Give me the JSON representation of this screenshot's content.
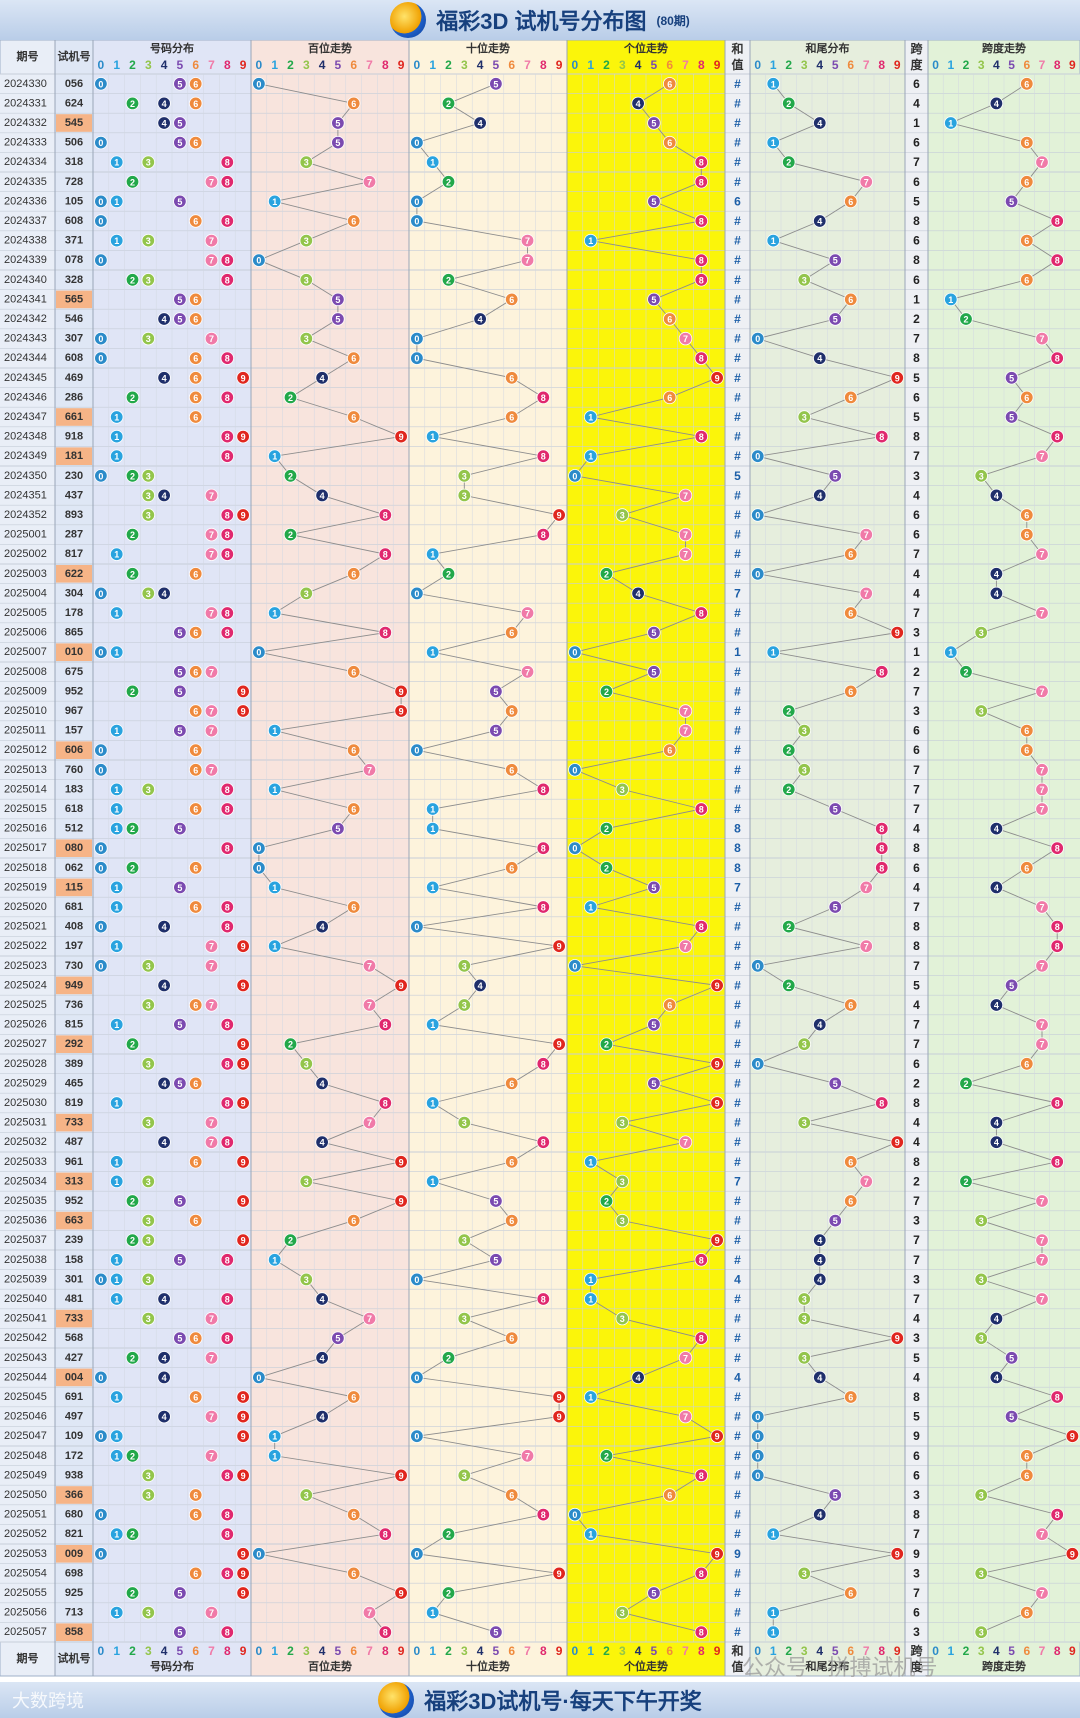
{
  "header": {
    "title": "福彩3D 试机号分布图",
    "subtitle": "(80期)"
  },
  "footer": {
    "title": "福彩3D试机号·每天下午开奖",
    "brand": "大数跨境",
    "watermark": "公众号 · 拼搏试机号"
  },
  "chart_data": {
    "type": "table",
    "column_headers": {
      "period": "期号",
      "trial": "试机号",
      "groups": [
        "号码分布",
        "百位走势",
        "十位走势",
        "个位走势",
        "和值",
        "和尾分布",
        "跨度",
        "跨度走势"
      ],
      "digits": [
        "0",
        "1",
        "2",
        "3",
        "4",
        "5",
        "6",
        "7",
        "8",
        "9"
      ]
    },
    "hezhi_placeholder": "#",
    "colors": {
      "0": "#2b8bc9",
      "1": "#29a3df",
      "2": "#22a84a",
      "3": "#93c54b",
      "4": "#1f2f6b",
      "5": "#7b4ab0",
      "6": "#ef8a3d",
      "7": "#f07aa8",
      "8": "#e0286e",
      "9": "#e0261e"
    },
    "rows": [
      {
        "p": "2024330",
        "n": "056",
        "s": "#",
        "sp": "6"
      },
      {
        "p": "2024331",
        "n": "624",
        "s": "#",
        "sp": "4"
      },
      {
        "p": "2024332",
        "n": "545",
        "s": "#",
        "sp": "1"
      },
      {
        "p": "2024333",
        "n": "506",
        "s": "#",
        "sp": "6"
      },
      {
        "p": "2024334",
        "n": "318",
        "s": "#",
        "sp": "7"
      },
      {
        "p": "2024335",
        "n": "728",
        "s": "#",
        "sp": "6"
      },
      {
        "p": "2024336",
        "n": "105",
        "s": "6",
        "sp": "5"
      },
      {
        "p": "2024337",
        "n": "608",
        "s": "#",
        "sp": "8"
      },
      {
        "p": "2024338",
        "n": "371",
        "s": "#",
        "sp": "6"
      },
      {
        "p": "2024339",
        "n": "078",
        "s": "#",
        "sp": "8"
      },
      {
        "p": "2024340",
        "n": "328",
        "s": "#",
        "sp": "6"
      },
      {
        "p": "2024341",
        "n": "565",
        "s": "#",
        "sp": "1"
      },
      {
        "p": "2024342",
        "n": "546",
        "s": "#",
        "sp": "2"
      },
      {
        "p": "2024343",
        "n": "307",
        "s": "#",
        "sp": "7"
      },
      {
        "p": "2024344",
        "n": "608",
        "s": "#",
        "sp": "8"
      },
      {
        "p": "2024345",
        "n": "469",
        "s": "#",
        "sp": "5"
      },
      {
        "p": "2024346",
        "n": "286",
        "s": "#",
        "sp": "6"
      },
      {
        "p": "2024347",
        "n": "661",
        "s": "#",
        "sp": "5"
      },
      {
        "p": "2024348",
        "n": "918",
        "s": "#",
        "sp": "8"
      },
      {
        "p": "2024349",
        "n": "181",
        "s": "#",
        "sp": "7"
      },
      {
        "p": "2024350",
        "n": "230",
        "s": "5",
        "sp": "3"
      },
      {
        "p": "2024351",
        "n": "437",
        "s": "#",
        "sp": "4"
      },
      {
        "p": "2024352",
        "n": "893",
        "s": "#",
        "sp": "6"
      },
      {
        "p": "2025001",
        "n": "287",
        "s": "#",
        "sp": "6"
      },
      {
        "p": "2025002",
        "n": "817",
        "s": "#",
        "sp": "7"
      },
      {
        "p": "2025003",
        "n": "622",
        "s": "#",
        "sp": "4"
      },
      {
        "p": "2025004",
        "n": "304",
        "s": "7",
        "sp": "4"
      },
      {
        "p": "2025005",
        "n": "178",
        "s": "#",
        "sp": "7"
      },
      {
        "p": "2025006",
        "n": "865",
        "s": "#",
        "sp": "3"
      },
      {
        "p": "2025007",
        "n": "010",
        "s": "1",
        "sp": "1"
      },
      {
        "p": "2025008",
        "n": "675",
        "s": "#",
        "sp": "2"
      },
      {
        "p": "2025009",
        "n": "952",
        "s": "#",
        "sp": "7"
      },
      {
        "p": "2025010",
        "n": "967",
        "s": "#",
        "sp": "3"
      },
      {
        "p": "2025011",
        "n": "157",
        "s": "#",
        "sp": "6"
      },
      {
        "p": "2025012",
        "n": "606",
        "s": "#",
        "sp": "6"
      },
      {
        "p": "2025013",
        "n": "760",
        "s": "#",
        "sp": "7"
      },
      {
        "p": "2025014",
        "n": "183",
        "s": "#",
        "sp": "7"
      },
      {
        "p": "2025015",
        "n": "618",
        "s": "#",
        "sp": "7"
      },
      {
        "p": "2025016",
        "n": "512",
        "s": "8",
        "sp": "4"
      },
      {
        "p": "2025017",
        "n": "080",
        "s": "8",
        "sp": "8"
      },
      {
        "p": "2025018",
        "n": "062",
        "s": "8",
        "sp": "6"
      },
      {
        "p": "2025019",
        "n": "115",
        "s": "7",
        "sp": "4"
      },
      {
        "p": "2025020",
        "n": "681",
        "s": "#",
        "sp": "7"
      },
      {
        "p": "2025021",
        "n": "408",
        "s": "#",
        "sp": "8"
      },
      {
        "p": "2025022",
        "n": "197",
        "s": "#",
        "sp": "8"
      },
      {
        "p": "2025023",
        "n": "730",
        "s": "#",
        "sp": "7"
      },
      {
        "p": "2025024",
        "n": "949",
        "s": "#",
        "sp": "5"
      },
      {
        "p": "2025025",
        "n": "736",
        "s": "#",
        "sp": "4"
      },
      {
        "p": "2025026",
        "n": "815",
        "s": "#",
        "sp": "7"
      },
      {
        "p": "2025027",
        "n": "292",
        "s": "#",
        "sp": "7"
      },
      {
        "p": "2025028",
        "n": "389",
        "s": "#",
        "sp": "6"
      },
      {
        "p": "2025029",
        "n": "465",
        "s": "#",
        "sp": "2"
      },
      {
        "p": "2025030",
        "n": "819",
        "s": "#",
        "sp": "8"
      },
      {
        "p": "2025031",
        "n": "733",
        "s": "#",
        "sp": "4"
      },
      {
        "p": "2025032",
        "n": "487",
        "s": "#",
        "sp": "4"
      },
      {
        "p": "2025033",
        "n": "961",
        "s": "#",
        "sp": "8"
      },
      {
        "p": "2025034",
        "n": "313",
        "s": "7",
        "sp": "2"
      },
      {
        "p": "2025035",
        "n": "952",
        "s": "#",
        "sp": "7"
      },
      {
        "p": "2025036",
        "n": "663",
        "s": "#",
        "sp": "3"
      },
      {
        "p": "2025037",
        "n": "239",
        "s": "#",
        "sp": "7"
      },
      {
        "p": "2025038",
        "n": "158",
        "s": "#",
        "sp": "7"
      },
      {
        "p": "2025039",
        "n": "301",
        "s": "4",
        "sp": "3"
      },
      {
        "p": "2025040",
        "n": "481",
        "s": "#",
        "sp": "7"
      },
      {
        "p": "2025041",
        "n": "733",
        "s": "#",
        "sp": "4"
      },
      {
        "p": "2025042",
        "n": "568",
        "s": "#",
        "sp": "3"
      },
      {
        "p": "2025043",
        "n": "427",
        "s": "#",
        "sp": "5"
      },
      {
        "p": "2025044",
        "n": "004",
        "s": "4",
        "sp": "4"
      },
      {
        "p": "2025045",
        "n": "691",
        "s": "#",
        "sp": "8"
      },
      {
        "p": "2025046",
        "n": "497",
        "s": "#",
        "sp": "5"
      },
      {
        "p": "2025047",
        "n": "109",
        "s": "#",
        "sp": "9"
      },
      {
        "p": "2025048",
        "n": "172",
        "s": "#",
        "sp": "6"
      },
      {
        "p": "2025049",
        "n": "938",
        "s": "#",
        "sp": "6"
      },
      {
        "p": "2025050",
        "n": "366",
        "s": "#",
        "sp": "3"
      },
      {
        "p": "2025051",
        "n": "680",
        "s": "#",
        "sp": "8"
      },
      {
        "p": "2025052",
        "n": "821",
        "s": "#",
        "sp": "7"
      },
      {
        "p": "2025053",
        "n": "009",
        "s": "9",
        "sp": "9"
      },
      {
        "p": "2025054",
        "n": "698",
        "s": "#",
        "sp": "3"
      },
      {
        "p": "2025055",
        "n": "925",
        "s": "#",
        "sp": "7"
      },
      {
        "p": "2025056",
        "n": "713",
        "s": "#",
        "sp": "6"
      },
      {
        "p": "2025057",
        "n": "858",
        "s": "#",
        "sp": "3"
      }
    ]
  }
}
